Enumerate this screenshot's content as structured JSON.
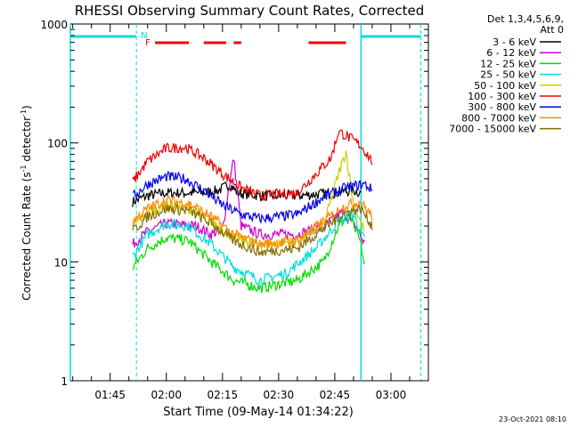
{
  "chart_data": {
    "type": "line",
    "title": "RHESSI Observing Summary Count Rates, Corrected",
    "xlabel": "Start Time (09-May-14 01:34:22)",
    "ylabel_main": "Corrected Count Rate (s",
    "ylabel_sup1": "-1",
    "ylabel_mid": " detector",
    "ylabel_sup2": "-1",
    "ylabel_end": ")",
    "yscale": "log",
    "ylim": [
      1,
      1000
    ],
    "xlim": [
      "01:34:22",
      "03:10:00"
    ],
    "x_ticks": [
      "01:45",
      "02:00",
      "02:15",
      "02:30",
      "02:45",
      "03:00"
    ],
    "y_ticks": [
      "1",
      "10",
      "100",
      "1000"
    ],
    "timestamp": "23-Oct-2021 08:10",
    "legend_header": [
      "Det 1,3,4,5,6,9,",
      "Att 0"
    ],
    "flag_letters": {
      "N": "N",
      "F": "F"
    },
    "night_boundaries": [
      "01:52",
      "02:52"
    ],
    "saa_boundaries": [
      "01:34:22",
      "03:08"
    ],
    "flare_flag_segments": [
      [
        "01:57",
        "02:06"
      ],
      [
        "02:10",
        "02:16"
      ],
      [
        "02:18",
        "02:20"
      ],
      [
        "02:38",
        "02:48"
      ]
    ],
    "series": [
      {
        "name": "3 - 6 keV",
        "color": "#000000",
        "points": [
          [
            "01:51",
            32
          ],
          [
            "01:55",
            36
          ],
          [
            "02:00",
            38
          ],
          [
            "02:10",
            38
          ],
          [
            "02:14",
            40
          ],
          [
            "02:17",
            45
          ],
          [
            "02:19",
            38
          ],
          [
            "02:25",
            36
          ],
          [
            "02:35",
            36
          ],
          [
            "02:45",
            38
          ],
          [
            "02:50",
            40
          ],
          [
            "02:52",
            38
          ]
        ]
      },
      {
        "name": "6 - 12 keV",
        "color": "#cc00cc",
        "points": [
          [
            "01:51",
            14
          ],
          [
            "01:55",
            18
          ],
          [
            "02:00",
            21
          ],
          [
            "02:08",
            20
          ],
          [
            "02:12",
            17
          ],
          [
            "02:15",
            19
          ],
          [
            "02:18",
            75
          ],
          [
            "02:20",
            20
          ],
          [
            "02:25",
            17
          ],
          [
            "02:35",
            17
          ],
          [
            "02:42",
            20
          ],
          [
            "02:47",
            26
          ],
          [
            "02:51",
            19
          ],
          [
            "02:53",
            14
          ]
        ]
      },
      {
        "name": "12 - 25 keV",
        "color": "#00dd00",
        "points": [
          [
            "01:51",
            9
          ],
          [
            "01:55",
            13
          ],
          [
            "02:00",
            16
          ],
          [
            "02:06",
            15
          ],
          [
            "02:12",
            10
          ],
          [
            "02:18",
            7
          ],
          [
            "02:25",
            6
          ],
          [
            "02:35",
            7
          ],
          [
            "02:42",
            10
          ],
          [
            "02:46",
            20
          ],
          [
            "02:49",
            25
          ],
          [
            "02:52",
            14
          ],
          [
            "02:53",
            9
          ]
        ]
      },
      {
        "name": "25 - 50 keV",
        "color": "#00dddd",
        "points": [
          [
            "01:51",
            11
          ],
          [
            "01:55",
            17
          ],
          [
            "02:00",
            21
          ],
          [
            "02:06",
            20
          ],
          [
            "02:12",
            14
          ],
          [
            "02:18",
            9
          ],
          [
            "02:25",
            7
          ],
          [
            "02:32",
            8
          ],
          [
            "02:40",
            13
          ],
          [
            "02:46",
            22
          ],
          [
            "02:50",
            25
          ],
          [
            "02:53",
            15
          ]
        ]
      },
      {
        "name": "50 - 100 keV",
        "color": "#cccc00",
        "points": [
          [
            "01:51",
            20
          ],
          [
            "01:55",
            26
          ],
          [
            "02:00",
            30
          ],
          [
            "02:06",
            28
          ],
          [
            "02:12",
            22
          ],
          [
            "02:18",
            16
          ],
          [
            "02:25",
            14
          ],
          [
            "02:35",
            15
          ],
          [
            "02:42",
            20
          ],
          [
            "02:46",
            55
          ],
          [
            "02:48",
            85
          ],
          [
            "02:50",
            30
          ],
          [
            "02:53",
            18
          ]
        ]
      },
      {
        "name": "100 - 300 keV",
        "color": "#ee0000",
        "points": [
          [
            "01:51",
            47
          ],
          [
            "01:55",
            70
          ],
          [
            "02:00",
            90
          ],
          [
            "02:05",
            92
          ],
          [
            "02:10",
            75
          ],
          [
            "02:15",
            55
          ],
          [
            "02:20",
            42
          ],
          [
            "02:25",
            36
          ],
          [
            "02:35",
            38
          ],
          [
            "02:40",
            55
          ],
          [
            "02:44",
            75
          ],
          [
            "02:46",
            125
          ],
          [
            "02:49",
            110
          ],
          [
            "02:52",
            95
          ],
          [
            "02:55",
            70
          ]
        ]
      },
      {
        "name": "300 - 800 keV",
        "color": "#0000ee",
        "points": [
          [
            "01:51",
            35
          ],
          [
            "01:55",
            45
          ],
          [
            "02:00",
            52
          ],
          [
            "02:05",
            50
          ],
          [
            "02:10",
            40
          ],
          [
            "02:15",
            30
          ],
          [
            "02:20",
            25
          ],
          [
            "02:25",
            23
          ],
          [
            "02:35",
            25
          ],
          [
            "02:42",
            35
          ],
          [
            "02:48",
            42
          ],
          [
            "02:53",
            45
          ],
          [
            "02:55",
            40
          ]
        ]
      },
      {
        "name": "800 - 7000 keV",
        "color": "#ff8800",
        "points": [
          [
            "01:51",
            22
          ],
          [
            "01:55",
            28
          ],
          [
            "02:00",
            33
          ],
          [
            "02:06",
            31
          ],
          [
            "02:12",
            24
          ],
          [
            "02:18",
            17
          ],
          [
            "02:25",
            14
          ],
          [
            "02:35",
            15
          ],
          [
            "02:42",
            22
          ],
          [
            "02:48",
            30
          ],
          [
            "02:52",
            32
          ],
          [
            "02:55",
            24
          ]
        ]
      },
      {
        "name": "7000 - 15000 keV",
        "color": "#8a6a00",
        "points": [
          [
            "01:51",
            18
          ],
          [
            "01:55",
            24
          ],
          [
            "02:00",
            28
          ],
          [
            "02:06",
            27
          ],
          [
            "02:12",
            21
          ],
          [
            "02:18",
            15
          ],
          [
            "02:25",
            12
          ],
          [
            "02:35",
            13
          ],
          [
            "02:42",
            19
          ],
          [
            "02:48",
            26
          ],
          [
            "02:52",
            28
          ],
          [
            "02:55",
            20
          ]
        ]
      }
    ]
  }
}
